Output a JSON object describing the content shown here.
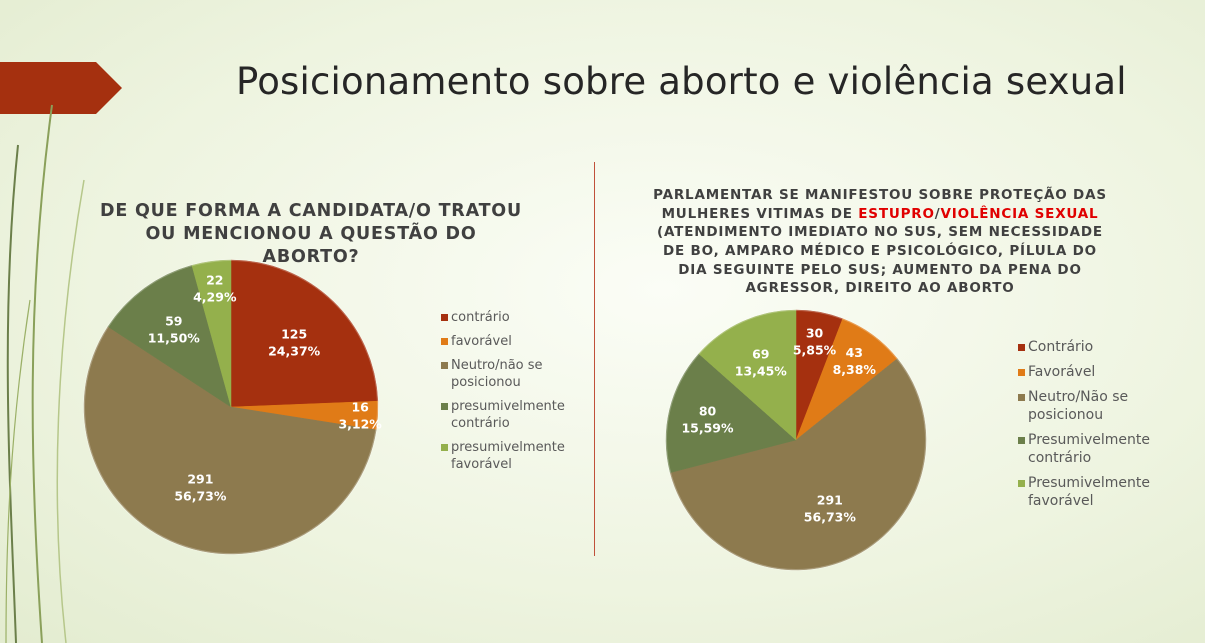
{
  "slide": {
    "title": "Posicionamento sobre aborto e violência sexual"
  },
  "colors": {
    "contrario": "#a5300f",
    "favoravel": "#e07b17",
    "neutro": "#8d7a4e",
    "presumivelmente_contrario": "#6b7f4a",
    "presumivelmente_favoravel": "#94b04c",
    "accent": "#a5300f",
    "highlight_red": "#e00000"
  },
  "chart_data": [
    {
      "type": "pie",
      "title": "DE QUE FORMA A CANDIDATA/O TRATOU OU MENCIONOU A QUESTÃO DO ABORTO?",
      "categories": [
        "contrário",
        "favorável",
        "Neutro/não se posicionou",
        "presumivelmente contrário",
        "presumivelmente favorável"
      ],
      "values": [
        125,
        16,
        291,
        59,
        22
      ],
      "percent_labels": [
        "24,37%",
        "3,12%",
        "56,73%",
        "11,50%",
        "4,29%"
      ],
      "legend_position": "right"
    },
    {
      "type": "pie",
      "title_parts": [
        "PARLAMENTAR SE MANIFESTOU SOBRE PROTEÇÃO DAS",
        "MULHERES VITIMAS DE ",
        "ESTUPRO",
        "/",
        "VIOLÊNCIA SEXUAL",
        "(ATENDIMENTO IMEDIATO NO SUS, SEM NECESSIDADE DE BO, AMPARO MÉDICO E PSICOLÓGICO, PÍLULA DO DIA SEGUINTE PELO SUS; AUMENTO DA PENA DO AGRESSOR, DIREITO AO ABORTO"
      ],
      "categories": [
        "Contrário",
        "Favorável",
        "Neutro/Não se posicionou",
        "Presumivelmente contrário",
        "Presumivelmente favorável"
      ],
      "values": [
        30,
        43,
        291,
        80,
        69
      ],
      "percent_labels": [
        "5,85%",
        "8,38%",
        "56,73%",
        "15,59%",
        "13,45%"
      ],
      "legend_position": "right"
    }
  ]
}
